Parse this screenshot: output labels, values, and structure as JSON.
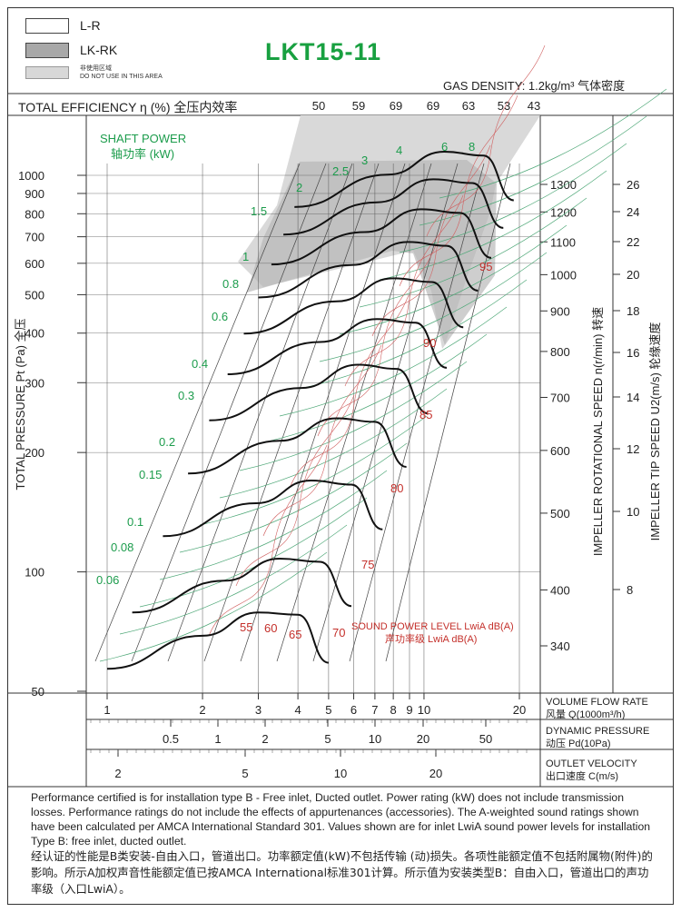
{
  "header": {
    "legend": [
      {
        "label": "L-R",
        "fill": "#ffffff"
      },
      {
        "label": "LK-RK",
        "fill": "#a8a8a8"
      },
      {
        "label_zh": "非使用区域",
        "label": "DO NOT USE IN THIS AREA",
        "fill": "#d8d8d8"
      }
    ],
    "title": "LKT15-11",
    "gas_density": "GAS DENSITY: 1.2kg/m³ 气体密度"
  },
  "efficiency_row": {
    "label": "TOTAL EFFICIENCY η (%) 全压内效率",
    "values": [
      "50",
      "59",
      "69",
      "69",
      "63",
      "53",
      "43"
    ]
  },
  "chart_data": {
    "type": "fan-performance-chart",
    "title": "LKT15-11",
    "ylabel": "TOTAL PRESSURE Pt (Pa) 全压",
    "y_scale": "log",
    "ylim": [
      50,
      1500
    ],
    "y_ticks": [
      50,
      100,
      200,
      300,
      400,
      500,
      600,
      700,
      800,
      900,
      1000
    ],
    "x_axis": {
      "label": "VOLUME FLOW RATE",
      "label_zh": "风量 Q(1000m³/h)",
      "scale": "log",
      "ticks": [
        1,
        2,
        3,
        4,
        5,
        6,
        7,
        8,
        9,
        10,
        20
      ]
    },
    "x_axis_dynamic": {
      "label": "DYNAMIC PRESSURE",
      "label_zh": "动压 Pd(10Pa)",
      "ticks": [
        "0.5",
        "1",
        "2",
        "5",
        "10",
        "20",
        "50"
      ]
    },
    "x_axis_velocity": {
      "label": "OUTLET VELOCITY",
      "label_zh": "出口速度 C(m/s)",
      "ticks": [
        "2",
        "5",
        "10",
        "20"
      ]
    },
    "right_axis_speed": {
      "label": "IMPELLER ROTATIONAL SPEED n(r/min) 转速",
      "ticks": [
        340,
        400,
        500,
        600,
        700,
        800,
        900,
        1000,
        1100,
        1200,
        1300
      ]
    },
    "right_axis_tip": {
      "label": "IMPELLER TIP SPEED U2(m/s) 轮缘速度",
      "ticks": [
        8,
        10,
        12,
        14,
        16,
        18,
        20,
        22,
        24,
        26
      ]
    },
    "shaft_power": {
      "label": "SHAFT POWER",
      "label_zh": "轴功率 (kW)",
      "values": [
        "0.06",
        "0.08",
        "0.1",
        "0.15",
        "0.2",
        "0.3",
        "0.4",
        "0.6",
        "0.8",
        "1",
        "1.5",
        "2",
        "2.5",
        "3",
        "4",
        "6",
        "8"
      ]
    },
    "sound_power": {
      "label": "SOUND POWER LEVEL LwiA dB(A)",
      "label_zh": "声功率级 LwiA dB(A)",
      "values": [
        "55",
        "60",
        "65",
        "70",
        "75",
        "80",
        "85",
        "90",
        "95"
      ]
    },
    "speed_curves": [
      {
        "speed": 340,
        "pts": [
          [
            1.0,
            57
          ],
          [
            2.0,
            69
          ],
          [
            3.0,
            79
          ],
          [
            4.0,
            78
          ],
          [
            5.0,
            59
          ]
        ]
      },
      {
        "speed": 400,
        "pts": [
          [
            1.2,
            79
          ],
          [
            2.35,
            95
          ],
          [
            3.5,
            108
          ],
          [
            4.7,
            106
          ],
          [
            5.9,
            82
          ]
        ]
      },
      {
        "speed": 500,
        "pts": [
          [
            1.5,
            123
          ],
          [
            2.95,
            149
          ],
          [
            4.4,
            170
          ],
          [
            5.9,
            166
          ],
          [
            7.4,
            128
          ]
        ]
      },
      {
        "speed": 600,
        "pts": [
          [
            1.8,
            177
          ],
          [
            3.5,
            214
          ],
          [
            5.3,
            244
          ],
          [
            7.0,
            239
          ],
          [
            8.8,
            184
          ]
        ]
      },
      {
        "speed": 700,
        "pts": [
          [
            2.1,
            241
          ],
          [
            4.1,
            291
          ],
          [
            6.2,
            333
          ],
          [
            8.2,
            325
          ],
          [
            10.3,
            251
          ]
        ]
      },
      {
        "speed": 800,
        "pts": [
          [
            2.4,
            315
          ],
          [
            4.7,
            380
          ],
          [
            7.1,
            434
          ],
          [
            9.4,
            425
          ],
          [
            11.8,
            327
          ]
        ]
      },
      {
        "speed": 900,
        "pts": [
          [
            2.7,
            399
          ],
          [
            5.3,
            481
          ],
          [
            8.0,
            550
          ],
          [
            10.6,
            538
          ],
          [
            13.3,
            414
          ]
        ]
      },
      {
        "speed": 1000,
        "pts": [
          [
            3.0,
            492
          ],
          [
            5.9,
            594
          ],
          [
            8.9,
            679
          ],
          [
            11.8,
            664
          ],
          [
            14.8,
            512
          ]
        ]
      },
      {
        "speed": 1100,
        "pts": [
          [
            3.3,
            596
          ],
          [
            6.5,
            719
          ],
          [
            9.8,
            821
          ],
          [
            13.0,
            804
          ],
          [
            16.3,
            619
          ]
        ]
      },
      {
        "speed": 1200,
        "pts": [
          [
            3.6,
            709
          ],
          [
            7.1,
            855
          ],
          [
            10.7,
            977
          ],
          [
            14.2,
            956
          ],
          [
            17.8,
            737
          ]
        ]
      },
      {
        "speed": 1300,
        "pts": [
          [
            3.9,
            832
          ],
          [
            7.7,
            1004
          ],
          [
            11.6,
            1147
          ],
          [
            15.4,
            1122
          ],
          [
            19.2,
            865
          ]
        ]
      }
    ]
  },
  "footer_notes": {
    "en": "Performance certified is for installation type B - Free inlet, Ducted outlet. Power rating (kW) does not include transmission losses. Performance ratings do not include the effects of appurtenances (accessories). The A-weighted sound ratings shown have been calculated per AMCA International Standard 301. Values shown are for inlet LwiA sound power levels for installation Type B: free inlet, ducted outlet.",
    "zh": "经认证的性能是B类安装-自由入口，管道出口。功率额定值(kW)不包括传输 (动)损失。各项性能额定值不包括附属物(附件)的影响。所示A加权声音性能额定值已按AMCA International标准301计算。所示值为安装类型B：自由入口，管道出口的声功率级（入口LwiA）。"
  }
}
